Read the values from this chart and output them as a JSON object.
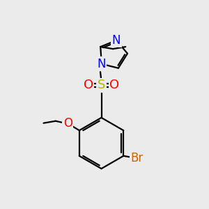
{
  "bg_color": "#ebebeb",
  "bond_color": "#000000",
  "N_color": "#0000ff",
  "S_color": "#b8b800",
  "O_color": "#ff0000",
  "Br_color": "#cc6600",
  "lw": 1.6,
  "xlim": [
    0,
    10
  ],
  "ylim": [
    0,
    10
  ]
}
